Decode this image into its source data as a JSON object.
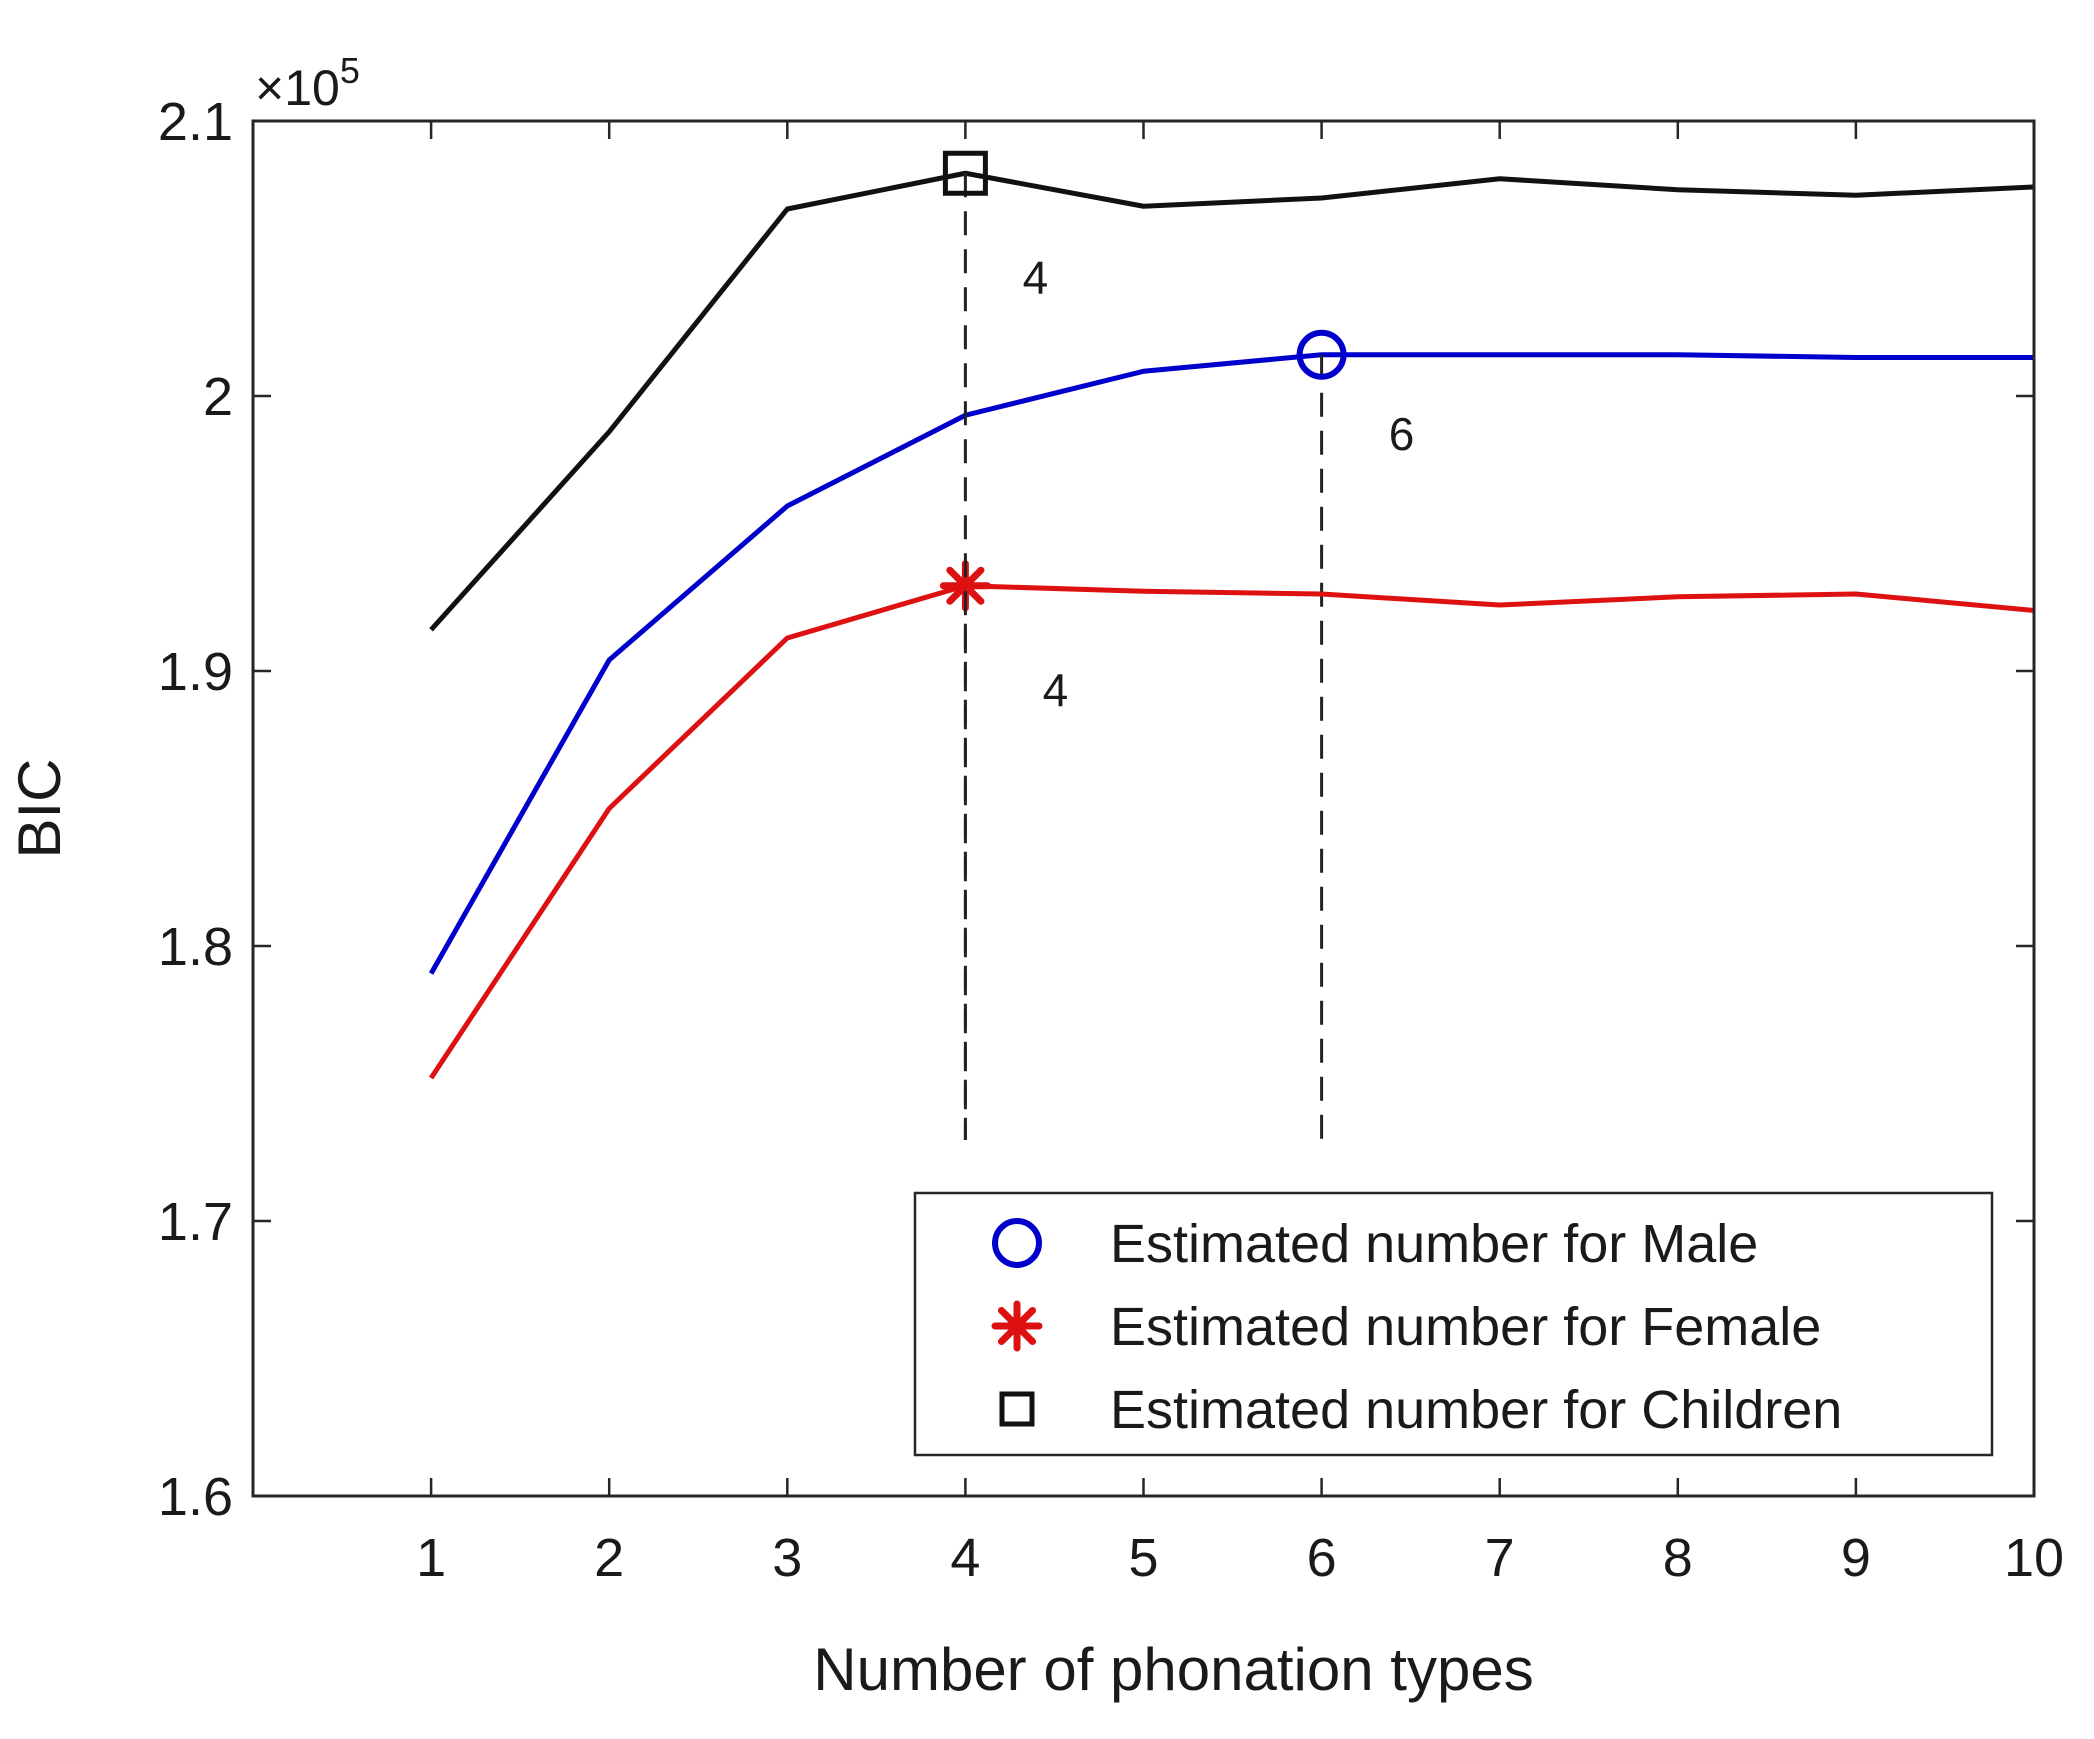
{
  "chart_data": {
    "type": "line",
    "title": "",
    "xlabel": "Number of phonation types",
    "ylabel": "BIC",
    "y_multiplier_label": "×10",
    "y_multiplier_exponent": "5",
    "xlim": [
      0,
      10
    ],
    "ylim": [
      1.6,
      2.1
    ],
    "xticks": [
      1,
      2,
      3,
      4,
      5,
      6,
      7,
      8,
      9,
      10
    ],
    "yticks": [
      "1.6",
      "1.7",
      "1.8",
      "1.9",
      "2",
      "2.1"
    ],
    "x": [
      1,
      2,
      3,
      4,
      5,
      6,
      7,
      8,
      9,
      10
    ],
    "series": [
      {
        "name": "Estimated number for Male",
        "color": "#0000cc",
        "marker": "circle",
        "values": [
          1.79,
          1.904,
          1.96,
          1.993,
          2.009,
          2.015,
          2.015,
          2.015,
          2.014,
          2.014
        ],
        "estimate_x": 6,
        "estimate_label": "6"
      },
      {
        "name": "Estimated number for Female",
        "color": "#dd1111",
        "marker": "asterisk",
        "values": [
          1.752,
          1.85,
          1.912,
          1.931,
          1.929,
          1.928,
          1.924,
          1.927,
          1.928,
          1.922
        ],
        "estimate_x": 4,
        "estimate_label": "4"
      },
      {
        "name": "Estimated number for Children",
        "color": "#111111",
        "marker": "square",
        "values": [
          1.915,
          1.987,
          2.068,
          2.081,
          2.069,
          2.072,
          2.079,
          2.075,
          2.073,
          2.076
        ],
        "estimate_x": 4,
        "estimate_label": "4"
      }
    ],
    "legend_location": "bottom-right",
    "grid": false
  }
}
